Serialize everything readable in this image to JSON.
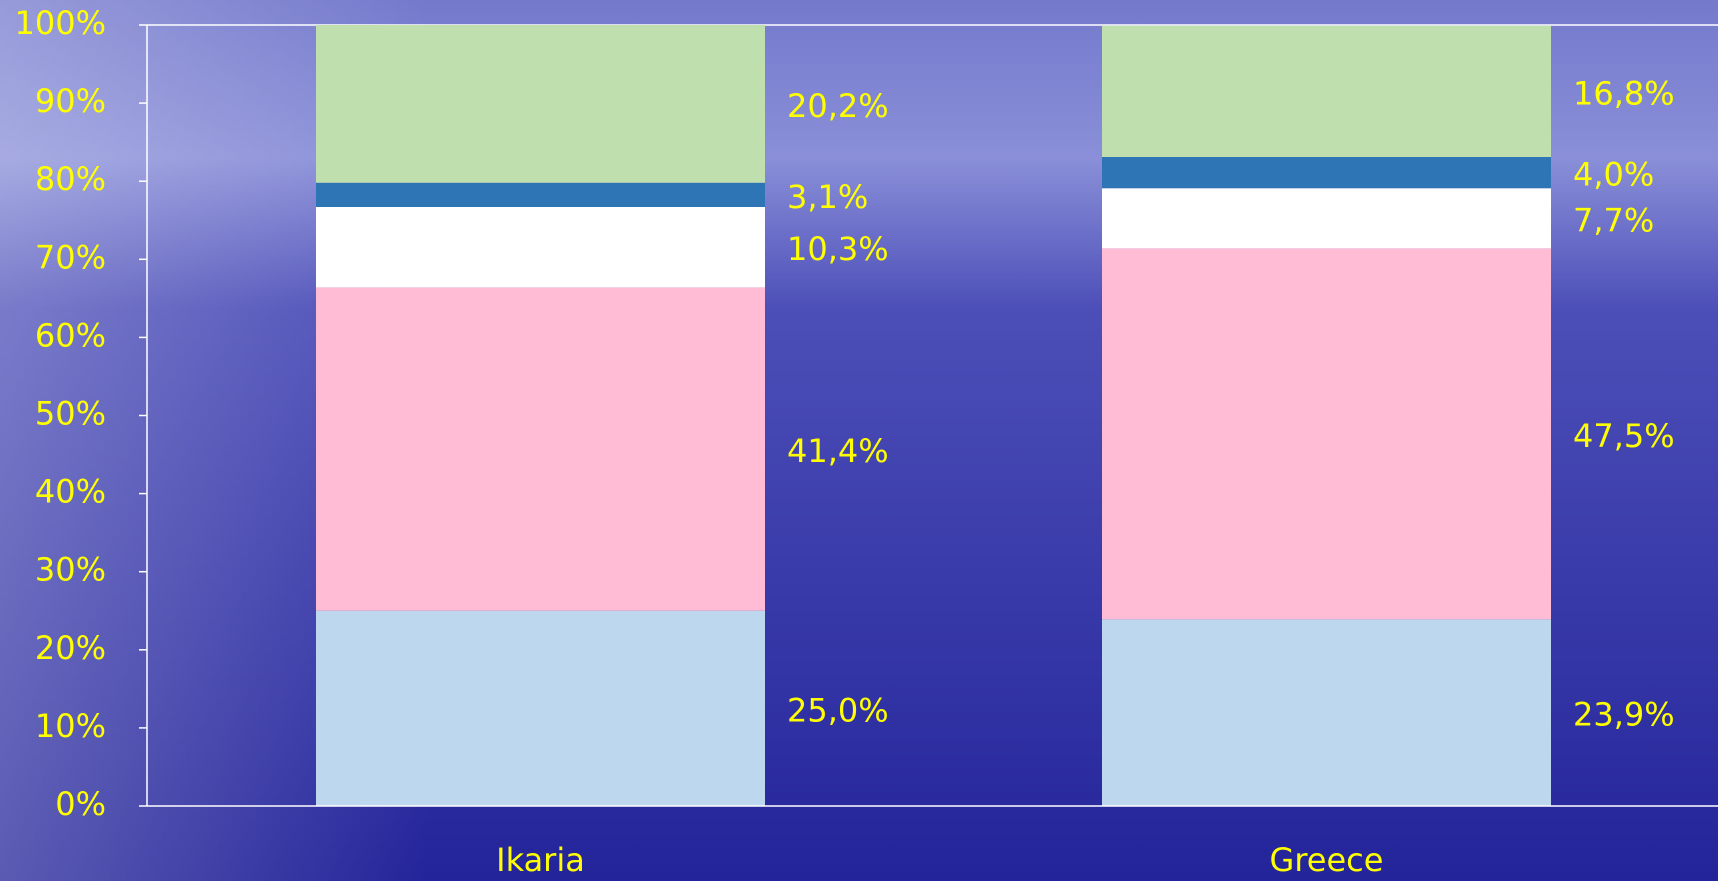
{
  "chart_data": {
    "type": "stacked_bar",
    "categories": [
      "Ikaria",
      "Greece"
    ],
    "series": [
      {
        "color": "#bdd7ee",
        "values": [
          25.0,
          23.9
        ],
        "value_labels": [
          "25,0%",
          "23,9%"
        ]
      },
      {
        "color": "#ffbcd4",
        "values": [
          41.4,
          47.5
        ],
        "value_labels": [
          "41,4%",
          "47,5%"
        ]
      },
      {
        "color": "#ffffff",
        "values": [
          10.3,
          7.7
        ],
        "value_labels": [
          "10,3%",
          "7,7%"
        ]
      },
      {
        "color": "#2e75b6",
        "values": [
          3.1,
          4.0
        ],
        "value_labels": [
          "3,1%",
          "4,0%"
        ]
      },
      {
        "color": "#c0dfae",
        "values": [
          20.2,
          16.8
        ],
        "value_labels": [
          "20,2%",
          "16,8%"
        ]
      }
    ],
    "ylim": [
      0,
      100
    ],
    "yticks": [
      {
        "value": 0,
        "label": "0%"
      },
      {
        "value": 10,
        "label": "10%"
      },
      {
        "value": 20,
        "label": "20%"
      },
      {
        "value": 30,
        "label": "30%"
      },
      {
        "value": 40,
        "label": "40%"
      },
      {
        "value": 50,
        "label": "50%"
      },
      {
        "value": 60,
        "label": "60%"
      },
      {
        "value": 70,
        "label": "70%"
      },
      {
        "value": 80,
        "label": "80%"
      },
      {
        "value": 90,
        "label": "90%"
      },
      {
        "value": 100,
        "label": "100%"
      }
    ]
  }
}
